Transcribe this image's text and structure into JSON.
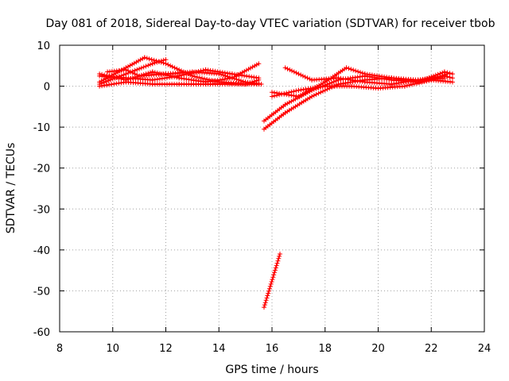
{
  "chart_data": {
    "type": "line",
    "title": "Day 081 of 2018, Sidereal Day-to-day VTEC variation (SDTVAR) for receiver tbob",
    "xlabel": "GPS time / hours",
    "ylabel": "SDTVAR / TECUs",
    "xlim": [
      8,
      24
    ],
    "ylim": [
      -60,
      10
    ],
    "xticks": [
      8,
      10,
      12,
      14,
      16,
      18,
      20,
      22,
      24
    ],
    "yticks": [
      10,
      0,
      -10,
      -20,
      -30,
      -40,
      -50,
      -60
    ],
    "grid": true,
    "series_color": "#ff0000",
    "series": [
      {
        "values": [
          [
            9.5,
            0.5
          ],
          [
            10.5,
            3.0
          ],
          [
            11.5,
            5.5
          ],
          [
            12.0,
            6.5
          ]
        ]
      },
      {
        "values": [
          [
            9.5,
            1.0
          ],
          [
            10.5,
            4.5
          ],
          [
            11.2,
            7.0
          ],
          [
            12.0,
            5.5
          ],
          [
            13.0,
            2.5
          ],
          [
            14.0,
            1.0
          ],
          [
            15.0,
            0.5
          ],
          [
            15.5,
            1.5
          ]
        ]
      },
      {
        "values": [
          [
            9.5,
            2.5
          ],
          [
            10.5,
            2.0
          ],
          [
            11.5,
            1.5
          ],
          [
            12.5,
            2.5
          ],
          [
            13.5,
            4.0
          ],
          [
            14.5,
            3.0
          ],
          [
            15.5,
            2.0
          ]
        ]
      },
      {
        "values": [
          [
            9.5,
            3.0
          ],
          [
            10.5,
            1.5
          ],
          [
            11.5,
            3.5
          ],
          [
            12.5,
            2.0
          ],
          [
            13.5,
            1.0
          ],
          [
            14.5,
            2.0
          ],
          [
            15.5,
            5.5
          ]
        ]
      },
      {
        "values": [
          [
            9.5,
            0.0
          ],
          [
            10.5,
            1.0
          ],
          [
            11.5,
            0.5
          ],
          [
            12.5,
            0.5
          ],
          [
            13.5,
            0.5
          ],
          [
            14.5,
            0.5
          ],
          [
            15.5,
            0.5
          ]
        ]
      },
      {
        "values": [
          [
            9.8,
            3.5
          ],
          [
            10.5,
            4.0
          ],
          [
            11.0,
            2.5
          ],
          [
            12.0,
            3.0
          ],
          [
            13.0,
            3.5
          ],
          [
            14.0,
            3.0
          ],
          [
            15.0,
            1.0
          ],
          [
            15.6,
            0.5
          ]
        ]
      },
      {
        "values": [
          [
            15.7,
            -54.0
          ],
          [
            16.3,
            -41.0
          ]
        ]
      },
      {
        "values": [
          [
            15.7,
            -10.5
          ],
          [
            16.5,
            -6.5
          ],
          [
            17.5,
            -2.5
          ],
          [
            18.5,
            0.5
          ],
          [
            19.5,
            1.5
          ],
          [
            20.5,
            2.0
          ],
          [
            21.5,
            1.5
          ],
          [
            22.5,
            2.5
          ],
          [
            22.8,
            2.0
          ]
        ]
      },
      {
        "values": [
          [
            15.7,
            -8.5
          ],
          [
            16.5,
            -4.5
          ],
          [
            17.5,
            -1.0
          ],
          [
            18.5,
            1.5
          ],
          [
            19.5,
            2.5
          ],
          [
            20.5,
            1.5
          ],
          [
            21.5,
            1.0
          ],
          [
            22.5,
            3.5
          ],
          [
            22.8,
            3.0
          ]
        ]
      },
      {
        "values": [
          [
            16.0,
            -2.5
          ],
          [
            17.0,
            -1.0
          ],
          [
            18.0,
            0.0
          ],
          [
            19.0,
            0.0
          ],
          [
            20.0,
            -0.5
          ],
          [
            21.0,
            0.0
          ],
          [
            22.0,
            1.5
          ],
          [
            22.8,
            1.0
          ]
        ]
      },
      {
        "values": [
          [
            16.5,
            4.5
          ],
          [
            17.5,
            1.5
          ],
          [
            18.5,
            2.0
          ],
          [
            19.5,
            1.0
          ],
          [
            20.5,
            0.5
          ],
          [
            21.5,
            1.5
          ],
          [
            22.5,
            2.0
          ]
        ]
      },
      {
        "values": [
          [
            16.0,
            -1.5
          ],
          [
            17.0,
            -2.5
          ],
          [
            18.0,
            1.0
          ],
          [
            18.8,
            4.5
          ],
          [
            19.5,
            3.0
          ],
          [
            20.5,
            2.0
          ],
          [
            21.5,
            1.0
          ],
          [
            22.0,
            1.5
          ],
          [
            22.6,
            3.0
          ]
        ]
      }
    ]
  }
}
